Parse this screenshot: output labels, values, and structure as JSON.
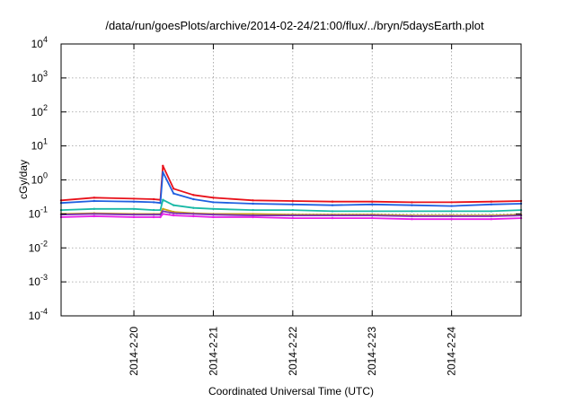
{
  "chart_data": {
    "type": "line",
    "title": "/data/run/goesPlots/archive/2014-02-24/21:00/flux/../bryn/5daysEarth.plot",
    "xlabel": "Coordinated Universal Time (UTC)",
    "ylabel": "cGy/day",
    "y_scale": "log",
    "ylim": [
      0.0001,
      10000
    ],
    "xlim": [
      "2014-02-19 02:00",
      "2014-02-24 21:00"
    ],
    "y_ticks": [
      {
        "base": "10",
        "exp": "-4",
        "value": 0.0001
      },
      {
        "base": "10",
        "exp": "-3",
        "value": 0.001
      },
      {
        "base": "10",
        "exp": "-2",
        "value": 0.01
      },
      {
        "base": "10",
        "exp": "-1",
        "value": 0.1
      },
      {
        "base": "10",
        "exp": "0",
        "value": 1
      },
      {
        "base": "10",
        "exp": "1",
        "value": 10
      },
      {
        "base": "10",
        "exp": "2",
        "value": 100
      },
      {
        "base": "10",
        "exp": "3",
        "value": 1000
      },
      {
        "base": "10",
        "exp": "4",
        "value": 10000
      }
    ],
    "x_ticks": [
      {
        "label": "2014-2-20",
        "value": "2014-02-20 00:00"
      },
      {
        "label": "2014-2-21",
        "value": "2014-02-21 00:00"
      },
      {
        "label": "2014-2-22",
        "value": "2014-02-22 00:00"
      },
      {
        "label": "2014-2-23",
        "value": "2014-02-23 00:00"
      },
      {
        "label": "2014-2-24",
        "value": "2014-02-24 00:00"
      }
    ],
    "grid": true,
    "legend": "none",
    "x": [
      "2014-02-19 02:00",
      "2014-02-19 12:00",
      "2014-02-20 00:00",
      "2014-02-20 06:00",
      "2014-02-20 08:00",
      "2014-02-20 08:45",
      "2014-02-20 12:00",
      "2014-02-20 18:00",
      "2014-02-21 00:00",
      "2014-02-21 12:00",
      "2014-02-22 00:00",
      "2014-02-22 12:00",
      "2014-02-23 00:00",
      "2014-02-23 12:00",
      "2014-02-24 00:00",
      "2014-02-24 12:00",
      "2014-02-24 21:00"
    ],
    "series": [
      {
        "color": "#e8111a",
        "values": [
          0.25,
          0.3,
          0.28,
          0.27,
          0.26,
          2.6,
          0.55,
          0.36,
          0.3,
          0.25,
          0.24,
          0.23,
          0.23,
          0.22,
          0.22,
          0.23,
          0.24
        ]
      },
      {
        "color": "#1f5fe0",
        "values": [
          0.21,
          0.24,
          0.23,
          0.22,
          0.21,
          1.7,
          0.4,
          0.27,
          0.22,
          0.2,
          0.19,
          0.18,
          0.19,
          0.18,
          0.17,
          0.19,
          0.2
        ]
      },
      {
        "color": "#19b9a6",
        "values": [
          0.13,
          0.14,
          0.14,
          0.13,
          0.13,
          0.26,
          0.18,
          0.15,
          0.14,
          0.13,
          0.13,
          0.12,
          0.12,
          0.12,
          0.12,
          0.12,
          0.13
        ]
      },
      {
        "color": "#c8a414",
        "values": [
          0.1,
          0.105,
          0.1,
          0.1,
          0.1,
          0.14,
          0.115,
          0.105,
          0.1,
          0.1,
          0.095,
          0.095,
          0.095,
          0.09,
          0.09,
          0.09,
          0.095
        ]
      },
      {
        "color": "#7b2fb3",
        "values": [
          0.095,
          0.1,
          0.095,
          0.095,
          0.095,
          0.12,
          0.105,
          0.1,
          0.095,
          0.09,
          0.09,
          0.09,
          0.09,
          0.085,
          0.085,
          0.085,
          0.09
        ]
      },
      {
        "color": "#e81ee8",
        "values": [
          0.08,
          0.085,
          0.08,
          0.08,
          0.08,
          0.1,
          0.09,
          0.085,
          0.08,
          0.08,
          0.075,
          0.075,
          0.075,
          0.07,
          0.07,
          0.07,
          0.075
        ]
      }
    ]
  }
}
